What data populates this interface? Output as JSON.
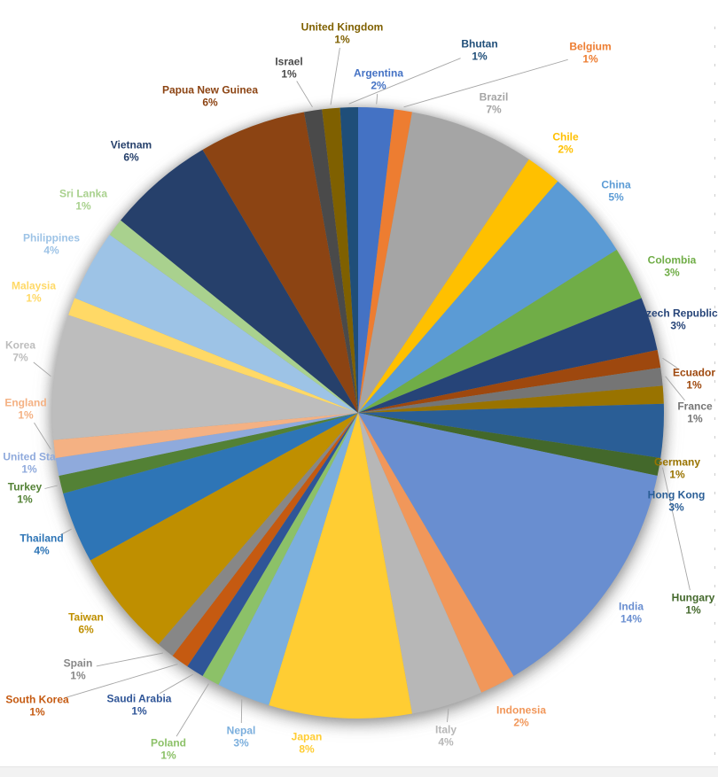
{
  "chart_data": {
    "type": "pie",
    "title": "",
    "direction": "clockwise",
    "start_angle_deg": 0,
    "legend_position": "none",
    "label_style": "category name and percent outside slices, text colored to match slice, gray leader lines",
    "leader_line_color": "#A6A6A6",
    "slices": [
      {
        "label": "Argentina",
        "percent_text": "2%",
        "value_pct": 2,
        "color": "#4472C4"
      },
      {
        "label": "Belgium",
        "percent_text": "1%",
        "value_pct": 1,
        "color": "#ED7D31"
      },
      {
        "label": "Brazil",
        "percent_text": "7%",
        "value_pct": 7,
        "color": "#A5A5A5"
      },
      {
        "label": "Chile",
        "percent_text": "2%",
        "value_pct": 2,
        "color": "#FFC000"
      },
      {
        "label": "China",
        "percent_text": "5%",
        "value_pct": 5,
        "color": "#5B9BD5"
      },
      {
        "label": "Colombia",
        "percent_text": "3%",
        "value_pct": 3,
        "color": "#70AD47"
      },
      {
        "label": "Czech Republic",
        "percent_text": "3%",
        "value_pct": 3,
        "color": "#264478"
      },
      {
        "label": "Ecuador",
        "percent_text": "1%",
        "value_pct": 1,
        "color": "#9E480E"
      },
      {
        "label": "France",
        "percent_text": "1%",
        "value_pct": 1,
        "color": "#757575"
      },
      {
        "label": "Germany",
        "percent_text": "1%",
        "value_pct": 1,
        "color": "#997300"
      },
      {
        "label": "Hong Kong",
        "percent_text": "3%",
        "value_pct": 3,
        "color": "#2A5E96"
      },
      {
        "label": "Hungary",
        "percent_text": "1%",
        "value_pct": 1,
        "color": "#43682B"
      },
      {
        "label": "India",
        "percent_text": "14%",
        "value_pct": 14,
        "color": "#698ED0"
      },
      {
        "label": "Indonesia",
        "percent_text": "2%",
        "value_pct": 2,
        "color": "#F1975A"
      },
      {
        "label": "Italy",
        "percent_text": "4%",
        "value_pct": 4,
        "color": "#B7B7B7"
      },
      {
        "label": "Japan",
        "percent_text": "8%",
        "value_pct": 8,
        "color": "#FFCD33"
      },
      {
        "label": "Nepal",
        "percent_text": "3%",
        "value_pct": 3,
        "color": "#7CAFDD"
      },
      {
        "label": "Poland",
        "percent_text": "1%",
        "value_pct": 1,
        "color": "#8CC168"
      },
      {
        "label": "Saudi Arabia",
        "percent_text": "1%",
        "value_pct": 1,
        "color": "#2F5597"
      },
      {
        "label": "South Korea",
        "percent_text": "1%",
        "value_pct": 1,
        "color": "#C55A11"
      },
      {
        "label": "Spain",
        "percent_text": "1%",
        "value_pct": 1,
        "color": "#878787"
      },
      {
        "label": "Taiwan",
        "percent_text": "6%",
        "value_pct": 6,
        "color": "#BF8F00"
      },
      {
        "label": "Thailand",
        "percent_text": "4%",
        "value_pct": 4,
        "color": "#2E75B6"
      },
      {
        "label": "Turkey",
        "percent_text": "1%",
        "value_pct": 1,
        "color": "#538135"
      },
      {
        "label": "United Sta",
        "percent_text": "1%",
        "value_pct": 1,
        "color": "#8FAADC"
      },
      {
        "label": "England",
        "percent_text": "1%",
        "value_pct": 1,
        "color": "#F4B183"
      },
      {
        "label": "Korea",
        "percent_text": "7%",
        "value_pct": 7,
        "color": "#BDBDBD"
      },
      {
        "label": "Malaysia",
        "percent_text": "1%",
        "value_pct": 1,
        "color": "#FFD966"
      },
      {
        "label": "Philippines",
        "percent_text": "4%",
        "value_pct": 4,
        "color": "#9DC3E6"
      },
      {
        "label": "Sri Lanka",
        "percent_text": "1%",
        "value_pct": 1,
        "color": "#A9D18E"
      },
      {
        "label": "Vietnam",
        "percent_text": "6%",
        "value_pct": 6,
        "color": "#26406B"
      },
      {
        "label": "Papua New Guinea",
        "percent_text": "6%",
        "value_pct": 6,
        "color": "#8C4413"
      },
      {
        "label": "Israel",
        "percent_text": "1%",
        "value_pct": 1,
        "color": "#4A4A4A"
      },
      {
        "label": "United Kingdom",
        "percent_text": "1%",
        "value_pct": 1,
        "color": "#7F6000"
      },
      {
        "label": "Bhutan",
        "percent_text": "1%",
        "value_pct": 1,
        "color": "#1F4E79"
      }
    ]
  },
  "page": {
    "background": "#FFFFFF",
    "page_break_dash_color": "#CCCCCC",
    "bottom_strip_color": "#F2F2F2"
  }
}
